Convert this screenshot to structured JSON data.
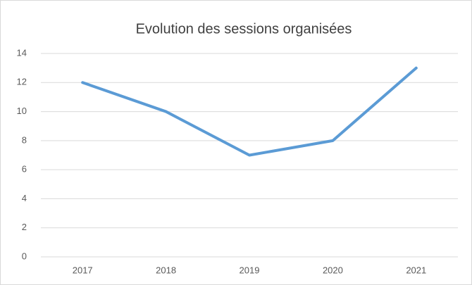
{
  "chart_data": {
    "type": "line",
    "title": "Evolution des sessions organisées",
    "categories": [
      "2017",
      "2018",
      "2019",
      "2020",
      "2021"
    ],
    "values": [
      12,
      10,
      7,
      8,
      13
    ],
    "color": "#5b9bd5",
    "ylim": [
      0,
      14
    ],
    "yticks": [
      0,
      2,
      4,
      6,
      8,
      10,
      12,
      14
    ],
    "grid": true
  }
}
